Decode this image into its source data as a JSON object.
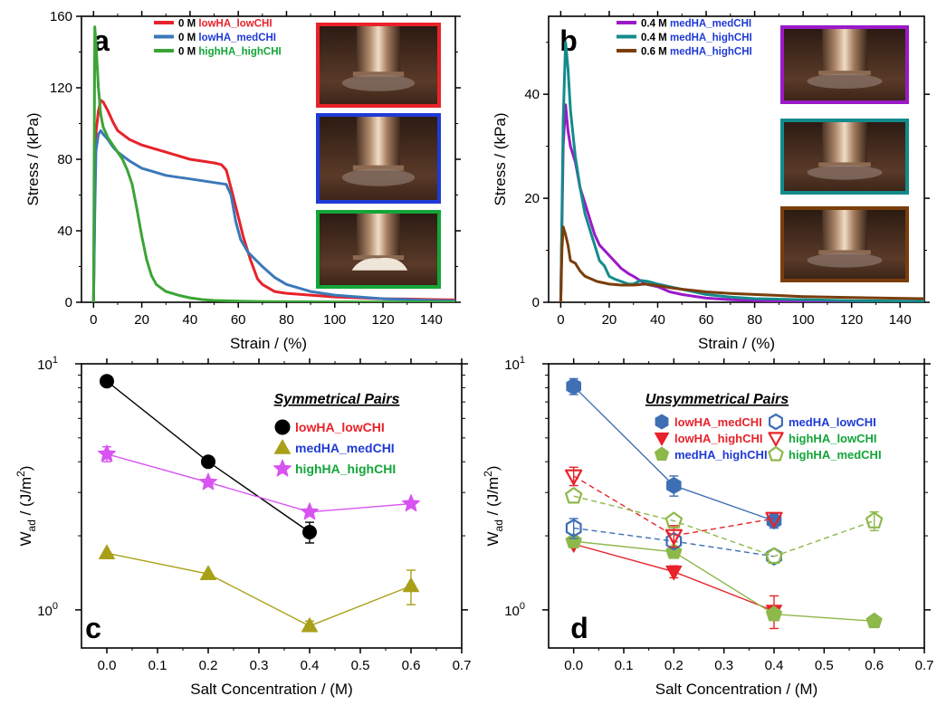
{
  "chart_data": [
    {
      "panel": "a",
      "type": "line",
      "xlabel": "Strain / (%)",
      "ylabel": "Stress / (kPa)",
      "xlim": [
        -5,
        150
      ],
      "ylim": [
        0,
        160
      ],
      "xticks": [
        0,
        20,
        40,
        60,
        80,
        100,
        120,
        140
      ],
      "yticks": [
        0,
        40,
        80,
        120,
        160
      ],
      "legend_position": "top-right",
      "series": [
        {
          "name": "0 M lowHA_lowCHI",
          "prefix": "0 M ",
          "label": "lowHA_lowCHI",
          "color": "#e8222a",
          "label_color": "#e8222a",
          "points": [
            [
              0,
              0
            ],
            [
              0.5,
              60
            ],
            [
              1,
              95
            ],
            [
              2,
              107
            ],
            [
              3,
              113
            ],
            [
              4,
              112
            ],
            [
              6,
              107
            ],
            [
              8,
              101
            ],
            [
              10,
              96
            ],
            [
              15,
              91
            ],
            [
              20,
              88
            ],
            [
              25,
              86
            ],
            [
              30,
              84
            ],
            [
              35,
              82
            ],
            [
              40,
              80
            ],
            [
              45,
              79
            ],
            [
              50,
              78
            ],
            [
              53,
              77
            ],
            [
              55,
              74
            ],
            [
              57,
              64
            ],
            [
              60,
              48
            ],
            [
              62,
              37
            ],
            [
              65,
              24
            ],
            [
              68,
              13
            ],
            [
              70,
              10
            ],
            [
              75,
              6
            ],
            [
              80,
              5
            ],
            [
              90,
              4
            ],
            [
              100,
              3
            ],
            [
              110,
              2.5
            ],
            [
              120,
              2
            ],
            [
              130,
              1.8
            ],
            [
              140,
              1.5
            ],
            [
              150,
              1.3
            ]
          ]
        },
        {
          "name": "0 M lowHA_medCHI",
          "prefix": "0 M ",
          "label": "lowHA_medCHI",
          "color": "#3a79b9",
          "label_color": "#1f3ad6",
          "points": [
            [
              0,
              0
            ],
            [
              0.5,
              50
            ],
            [
              1,
              85
            ],
            [
              2,
              94
            ],
            [
              3,
              96
            ],
            [
              4,
              94
            ],
            [
              6,
              91
            ],
            [
              8,
              87
            ],
            [
              10,
              84
            ],
            [
              15,
              79
            ],
            [
              20,
              75
            ],
            [
              25,
              73
            ],
            [
              30,
              71
            ],
            [
              35,
              70
            ],
            [
              40,
              69
            ],
            [
              45,
              68
            ],
            [
              50,
              67
            ],
            [
              55,
              66
            ],
            [
              57,
              60
            ],
            [
              59,
              45
            ],
            [
              61,
              35
            ],
            [
              64,
              28
            ],
            [
              67,
              24
            ],
            [
              70,
              20
            ],
            [
              75,
              14
            ],
            [
              80,
              10
            ],
            [
              85,
              8
            ],
            [
              90,
              6
            ],
            [
              95,
              5
            ],
            [
              100,
              4
            ],
            [
              110,
              3
            ],
            [
              120,
              2
            ],
            [
              130,
              1.5
            ],
            [
              140,
              1
            ],
            [
              150,
              0.8
            ]
          ]
        },
        {
          "name": "0 M highHA_highCHI",
          "prefix": "0 M ",
          "label": "highHA_highCHI",
          "color": "#3aa535",
          "label_color": "#13a538",
          "points": [
            [
              0,
              0
            ],
            [
              0.5,
              154
            ],
            [
              1,
              145
            ],
            [
              2,
              120
            ],
            [
              3,
              105
            ],
            [
              4,
              98
            ],
            [
              6,
              92
            ],
            [
              8,
              88
            ],
            [
              10,
              84
            ],
            [
              12,
              80
            ],
            [
              14,
              74
            ],
            [
              16,
              66
            ],
            [
              18,
              52
            ],
            [
              20,
              37
            ],
            [
              22,
              24
            ],
            [
              24,
              15
            ],
            [
              26,
              10
            ],
            [
              28,
              8
            ],
            [
              30,
              6
            ],
            [
              35,
              4
            ],
            [
              40,
              2.5
            ],
            [
              45,
              1.5
            ],
            [
              50,
              1
            ],
            [
              60,
              0.6
            ],
            [
              70,
              0.4
            ],
            [
              80,
              0.3
            ],
            [
              100,
              0.2
            ],
            [
              150,
              0.1
            ]
          ]
        }
      ]
    },
    {
      "panel": "b",
      "type": "line",
      "xlabel": "Strain / (%)",
      "ylabel": "Stress / (kPa)",
      "xlim": [
        -5,
        150
      ],
      "ylim": [
        0,
        55
      ],
      "xticks": [
        0,
        20,
        40,
        60,
        80,
        100,
        120,
        140
      ],
      "yticks": [
        0,
        20,
        40
      ],
      "legend_position": "top-right",
      "series": [
        {
          "name": "0.4 M medHA_medCHI",
          "prefix": "0.4 M ",
          "label": "medHA_medCHI",
          "color": "#9b19c7",
          "label_color": "#1f3ad6",
          "points": [
            [
              0,
              0
            ],
            [
              1,
              30
            ],
            [
              2,
              38
            ],
            [
              3,
              33
            ],
            [
              4,
              30
            ],
            [
              6,
              27
            ],
            [
              8,
              22
            ],
            [
              10,
              19
            ],
            [
              12,
              16
            ],
            [
              14,
              13
            ],
            [
              16,
              11
            ],
            [
              18,
              10
            ],
            [
              20,
              9
            ],
            [
              22,
              8
            ],
            [
              25,
              6.5
            ],
            [
              28,
              5.5
            ],
            [
              30,
              5
            ],
            [
              35,
              3.5
            ],
            [
              40,
              3
            ],
            [
              45,
              2
            ],
            [
              50,
              1.5
            ],
            [
              60,
              0.8
            ],
            [
              70,
              0.5
            ],
            [
              80,
              0.3
            ],
            [
              100,
              0.2
            ],
            [
              150,
              0.1
            ]
          ]
        },
        {
          "name": "0.4 M medHA_highCHI",
          "prefix": "0.4 M ",
          "label": "medHA_highCHI",
          "color": "#148b8b",
          "label_color": "#1f3ad6",
          "points": [
            [
              0,
              0
            ],
            [
              1,
              35
            ],
            [
              2,
              50
            ],
            [
              3,
              45
            ],
            [
              4,
              37
            ],
            [
              6,
              28
            ],
            [
              8,
              22
            ],
            [
              10,
              17
            ],
            [
              12,
              14
            ],
            [
              14,
              11
            ],
            [
              16,
              8
            ],
            [
              18,
              7
            ],
            [
              20,
              5
            ],
            [
              22,
              4.5
            ],
            [
              25,
              4
            ],
            [
              28,
              3.5
            ],
            [
              30,
              3.5
            ],
            [
              33,
              4.2
            ],
            [
              36,
              4
            ],
            [
              40,
              3.5
            ],
            [
              45,
              3
            ],
            [
              50,
              2.5
            ],
            [
              60,
              1.5
            ],
            [
              70,
              1
            ],
            [
              80,
              0.7
            ],
            [
              100,
              0.5
            ],
            [
              120,
              0.3
            ],
            [
              150,
              0.2
            ]
          ]
        },
        {
          "name": "0.6 M medHA_highCHI",
          "prefix": "0.6 M ",
          "label": "medHA_highCHI",
          "color": "#7a3e0c",
          "label_color": "#1f3ad6",
          "points": [
            [
              0,
              0
            ],
            [
              0.5,
              10
            ],
            [
              1,
              14.5
            ],
            [
              2,
              13
            ],
            [
              3,
              11
            ],
            [
              4,
              8
            ],
            [
              6,
              7.5
            ],
            [
              8,
              6
            ],
            [
              10,
              5
            ],
            [
              15,
              4
            ],
            [
              20,
              3.5
            ],
            [
              25,
              3.3
            ],
            [
              30,
              3.3
            ],
            [
              35,
              3.5
            ],
            [
              40,
              3.2
            ],
            [
              45,
              2.8
            ],
            [
              50,
              2.5
            ],
            [
              60,
              2
            ],
            [
              70,
              1.7
            ],
            [
              80,
              1.5
            ],
            [
              90,
              1.3
            ],
            [
              100,
              1.1
            ],
            [
              120,
              0.9
            ],
            [
              150,
              0.7
            ]
          ]
        }
      ]
    },
    {
      "panel": "c",
      "type": "scatter",
      "title": "Symmetrical Pairs",
      "xlabel": "Salt Concentration / (M)",
      "ylabel_main": "W",
      "ylabel_sub": "ad",
      "ylabel_rest": " / (J/m",
      "ylabel_sup": "2",
      "ylabel_end": ")",
      "xlim": [
        -0.05,
        0.7
      ],
      "ylim": [
        0.7,
        10
      ],
      "yscale": "log",
      "xticks": [
        0.0,
        0.1,
        0.2,
        0.3,
        0.4,
        0.5,
        0.6,
        0.7
      ],
      "ytick_base": "10",
      "ytick_labels": [
        {
          "value": 1,
          "exp": "0"
        },
        {
          "value": 10,
          "exp": "1"
        }
      ],
      "legend_position": "top-right",
      "series": [
        {
          "name": "lowHA_lowCHI",
          "marker": "circle",
          "color": "#000000",
          "label_color": "#e8222a",
          "filled": true,
          "line": "solid",
          "x": [
            0.0,
            0.2,
            0.4
          ],
          "y": [
            8.5,
            4.0,
            2.07
          ],
          "err": [
            0,
            0,
            0.2
          ]
        },
        {
          "name": "medHA_medCHI",
          "marker": "triangle-up",
          "color": "#a9a019",
          "label_color": "#1f3ad6",
          "filled": true,
          "line": "solid",
          "x": [
            0.0,
            0.2,
            0.4,
            0.6
          ],
          "y": [
            1.7,
            1.4,
            0.86,
            1.25
          ],
          "err": [
            0,
            0,
            0.04,
            0.2
          ]
        },
        {
          "name": "highHA_highCHI",
          "marker": "star",
          "color": "#d853f2",
          "label_color": "#13a538",
          "filled": true,
          "line": "solid",
          "x": [
            0.0,
            0.2,
            0.4,
            0.6
          ],
          "y": [
            4.3,
            3.3,
            2.5,
            2.7
          ],
          "err": [
            0.3,
            0,
            0,
            0
          ]
        }
      ]
    },
    {
      "panel": "d",
      "type": "scatter",
      "title": "Unsymmetrical Pairs",
      "xlabel": "Salt Concentration / (M)",
      "ylabel_main": "W",
      "ylabel_sub": "ad",
      "ylabel_rest": " / (J/m",
      "ylabel_sup": "2",
      "ylabel_end": ")",
      "xlim": [
        -0.05,
        0.7
      ],
      "ylim": [
        0.7,
        10
      ],
      "yscale": "log",
      "xticks": [
        0.0,
        0.1,
        0.2,
        0.3,
        0.4,
        0.5,
        0.6,
        0.7
      ],
      "ytick_base": "10",
      "ytick_labels": [
        {
          "value": 1,
          "exp": "0"
        },
        {
          "value": 10,
          "exp": "1"
        }
      ],
      "legend_position": "top-right",
      "series": [
        {
          "name": "lowHA_medCHI",
          "marker": "hexagon",
          "color": "#3e6fb4",
          "label_color": "#e8222a",
          "filled": true,
          "line": "solid",
          "x": [
            0.0,
            0.2,
            0.4
          ],
          "y": [
            8.1,
            3.2,
            2.3
          ],
          "err": [
            0.6,
            0.3,
            0.15
          ]
        },
        {
          "name": "lowHA_highCHI",
          "marker": "triangle-down",
          "color": "#e8222a",
          "label_color": "#e8222a",
          "filled": true,
          "line": "solid",
          "x": [
            0.0,
            0.2,
            0.4
          ],
          "y": [
            1.85,
            1.43,
            0.99
          ],
          "err": [
            0,
            0.08,
            0.15
          ]
        },
        {
          "name": "medHA_highCHI",
          "marker": "pentagon",
          "color": "#8db84a",
          "label_color": "#1f3ad6",
          "filled": true,
          "line": "solid",
          "x": [
            0.0,
            0.2,
            0.4,
            0.6
          ],
          "y": [
            1.9,
            1.72,
            0.96,
            0.9
          ],
          "err": [
            0,
            0,
            0,
            0
          ]
        },
        {
          "name": "medHA_lowCHI",
          "marker": "hexagon",
          "color": "#3e6fb4",
          "label_color": "#1f3ad6",
          "filled": false,
          "line": "dashed",
          "x": [
            0.0,
            0.2,
            0.4
          ],
          "y": [
            2.15,
            1.9,
            1.65
          ],
          "err": [
            0.2,
            0,
            0
          ]
        },
        {
          "name": "highHA_lowCHI",
          "marker": "triangle-down",
          "color": "#e8222a",
          "label_color": "#13a538",
          "filled": false,
          "line": "dashed",
          "x": [
            0.0,
            0.2,
            0.4
          ],
          "y": [
            3.5,
            2.0,
            2.35
          ],
          "err": [
            0.3,
            0.2,
            0
          ]
        },
        {
          "name": "highHA_medCHI",
          "marker": "pentagon",
          "color": "#8db84a",
          "label_color": "#13a538",
          "filled": false,
          "line": "dashed",
          "x": [
            0.0,
            0.2,
            0.4,
            0.6
          ],
          "y": [
            2.9,
            2.3,
            1.65,
            2.3
          ],
          "err": [
            0,
            0,
            0,
            0.2
          ]
        }
      ]
    }
  ],
  "insets": {
    "a": [
      {
        "frame": "#e8222a"
      },
      {
        "frame": "#1f3ad6"
      },
      {
        "frame": "#13a538"
      }
    ],
    "b": [
      {
        "frame": "#9b19c7"
      },
      {
        "frame": "#148b8b"
      },
      {
        "frame": "#7a3e0c"
      }
    ]
  }
}
